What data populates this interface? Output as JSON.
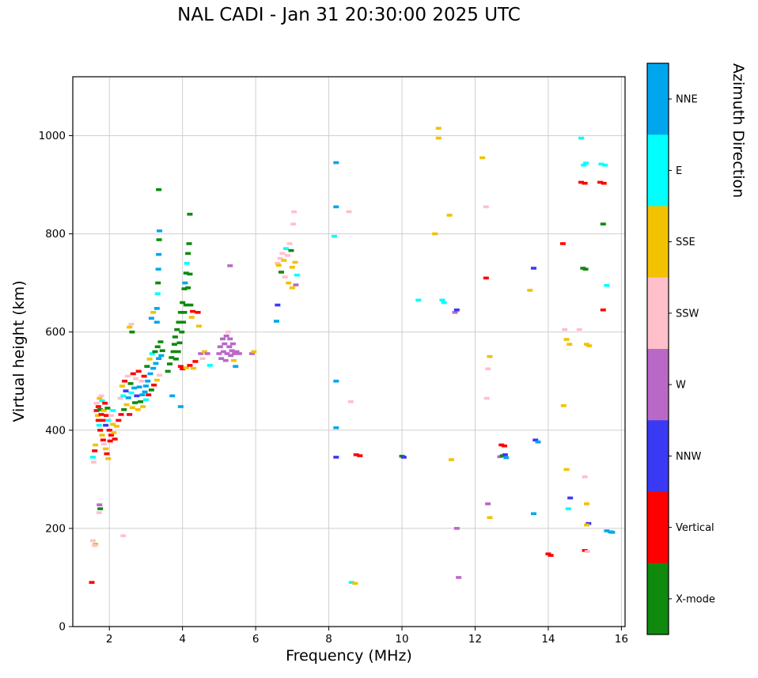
{
  "title": "NAL CADI - Jan 31 20:30:00 2025 UTC",
  "chart_data": {
    "type": "scatter",
    "title": "NAL CADI - Jan 31 20:30:00 2025 UTC",
    "xlabel": "Frequency (MHz)",
    "ylabel": "Virtual height (km)",
    "xlim": [
      1.0,
      16.1
    ],
    "ylim": [
      0,
      1120
    ],
    "xticks": [
      2,
      4,
      6,
      8,
      10,
      12,
      14,
      16
    ],
    "yticks": [
      0,
      200,
      400,
      600,
      800,
      1000
    ],
    "grid": true,
    "grid_color": "#cfcfcf",
    "marker": "horizontal-dash",
    "colorbar": {
      "label": "Azimuth Direction",
      "categories": [
        {
          "key": "NNE",
          "label": "NNE",
          "color": "#00a6ed"
        },
        {
          "key": "E",
          "label": "E",
          "color": "#00ffff"
        },
        {
          "key": "SSE",
          "label": "SSE",
          "color": "#f2c200"
        },
        {
          "key": "SSW",
          "label": "SSW",
          "color": "#ffc0cb"
        },
        {
          "key": "W",
          "label": "W",
          "color": "#ba68c8"
        },
        {
          "key": "NNW",
          "label": "NNW",
          "color": "#3a3af5"
        },
        {
          "key": "V",
          "label": "Vertical",
          "color": "#ff0000"
        },
        {
          "key": "X",
          "label": "X-mode",
          "color": "#0f8a0f"
        }
      ]
    },
    "points": [
      [
        1.52,
        90,
        "V"
      ],
      [
        1.55,
        175,
        "SSW"
      ],
      [
        1.62,
        168,
        "SSE"
      ],
      [
        1.6,
        165,
        "SSW"
      ],
      [
        2.38,
        185,
        "SSW"
      ],
      [
        1.73,
        248,
        "W"
      ],
      [
        1.75,
        240,
        "X"
      ],
      [
        1.72,
        232,
        "SSW"
      ],
      [
        1.55,
        345,
        "E"
      ],
      [
        1.57,
        335,
        "SSW"
      ],
      [
        1.6,
        358,
        "V"
      ],
      [
        1.62,
        370,
        "SSE"
      ],
      [
        1.65,
        455,
        "SSW"
      ],
      [
        1.65,
        440,
        "V"
      ],
      [
        1.68,
        430,
        "SSE"
      ],
      [
        1.7,
        420,
        "V"
      ],
      [
        1.7,
        448,
        "V"
      ],
      [
        1.72,
        410,
        "E"
      ],
      [
        1.73,
        465,
        "SSE"
      ],
      [
        1.75,
        442,
        "X"
      ],
      [
        1.75,
        400,
        "V"
      ],
      [
        1.78,
        470,
        "SSW"
      ],
      [
        1.78,
        432,
        "V"
      ],
      [
        1.8,
        390,
        "SSE"
      ],
      [
        1.8,
        460,
        "E"
      ],
      [
        1.82,
        420,
        "V"
      ],
      [
        1.83,
        380,
        "V"
      ],
      [
        1.85,
        440,
        "SSE"
      ],
      [
        1.85,
        372,
        "SSW"
      ],
      [
        1.88,
        455,
        "V"
      ],
      [
        1.9,
        410,
        "NNW"
      ],
      [
        1.9,
        362,
        "SSE"
      ],
      [
        1.92,
        430,
        "V"
      ],
      [
        1.93,
        352,
        "V"
      ],
      [
        1.95,
        445,
        "X"
      ],
      [
        1.97,
        420,
        "E"
      ],
      [
        1.97,
        342,
        "SSE"
      ],
      [
        2.0,
        400,
        "V"
      ],
      [
        2.02,
        378,
        "V"
      ],
      [
        2.05,
        430,
        "SSW"
      ],
      [
        2.05,
        390,
        "V"
      ],
      [
        2.1,
        440,
        "E"
      ],
      [
        2.1,
        412,
        "SSE"
      ],
      [
        2.12,
        395,
        "SSE"
      ],
      [
        2.15,
        382,
        "V"
      ],
      [
        2.2,
        408,
        "SSE"
      ],
      [
        2.25,
        420,
        "V"
      ],
      [
        2.3,
        465,
        "SSW"
      ],
      [
        2.32,
        432,
        "V"
      ],
      [
        2.35,
        490,
        "SSE"
      ],
      [
        2.38,
        470,
        "E"
      ],
      [
        2.4,
        442,
        "X"
      ],
      [
        2.42,
        500,
        "V"
      ],
      [
        2.45,
        480,
        "NNW"
      ],
      [
        2.47,
        452,
        "SSE"
      ],
      [
        2.5,
        510,
        "SSW"
      ],
      [
        2.52,
        466,
        "NNE"
      ],
      [
        2.55,
        432,
        "V"
      ],
      [
        2.55,
        610,
        "SSE"
      ],
      [
        2.6,
        616,
        "SSW"
      ],
      [
        2.62,
        600,
        "X"
      ],
      [
        2.58,
        495,
        "X"
      ],
      [
        2.6,
        476,
        "E"
      ],
      [
        2.63,
        446,
        "SSE"
      ],
      [
        2.65,
        515,
        "V"
      ],
      [
        2.68,
        486,
        "NNE"
      ],
      [
        2.7,
        456,
        "X"
      ],
      [
        2.72,
        505,
        "SSW"
      ],
      [
        2.75,
        470,
        "NNW"
      ],
      [
        2.78,
        442,
        "SSE"
      ],
      [
        2.8,
        520,
        "V"
      ],
      [
        2.82,
        488,
        "NNE"
      ],
      [
        2.85,
        458,
        "X"
      ],
      [
        2.88,
        500,
        "SSW"
      ],
      [
        2.9,
        472,
        "NNE"
      ],
      [
        2.92,
        448,
        "SSE"
      ],
      [
        2.95,
        510,
        "V"
      ],
      [
        2.97,
        478,
        "NNE"
      ],
      [
        3.0,
        490,
        "NNE"
      ],
      [
        3.0,
        462,
        "E"
      ],
      [
        3.03,
        530,
        "X"
      ],
      [
        3.05,
        500,
        "NNE"
      ],
      [
        3.07,
        472,
        "V"
      ],
      [
        3.1,
        545,
        "SSE"
      ],
      [
        3.12,
        515,
        "NNE"
      ],
      [
        3.15,
        482,
        "X"
      ],
      [
        3.17,
        556,
        "E"
      ],
      [
        3.2,
        526,
        "NNE"
      ],
      [
        3.22,
        492,
        "V"
      ],
      [
        3.25,
        560,
        "X"
      ],
      [
        3.27,
        536,
        "NNE"
      ],
      [
        3.3,
        502,
        "SSE"
      ],
      [
        3.32,
        570,
        "X"
      ],
      [
        3.35,
        546,
        "NNE"
      ],
      [
        3.37,
        512,
        "SSW"
      ],
      [
        3.4,
        580,
        "X"
      ],
      [
        3.42,
        552,
        "NNE"
      ],
      [
        3.45,
        562,
        "X"
      ],
      [
        3.3,
        620,
        "NNE"
      ],
      [
        3.3,
        648,
        "NNE"
      ],
      [
        3.32,
        678,
        "E"
      ],
      [
        3.33,
        700,
        "X"
      ],
      [
        3.34,
        728,
        "NNE"
      ],
      [
        3.35,
        758,
        "NNE"
      ],
      [
        3.36,
        788,
        "X"
      ],
      [
        3.37,
        806,
        "NNE"
      ],
      [
        3.35,
        890,
        "X"
      ],
      [
        3.2,
        640,
        "SSE"
      ],
      [
        3.15,
        628,
        "NNE"
      ],
      [
        3.6,
        520,
        "X"
      ],
      [
        3.65,
        535,
        "X"
      ],
      [
        3.7,
        548,
        "X"
      ],
      [
        3.72,
        470,
        "NNE"
      ],
      [
        3.75,
        560,
        "X"
      ],
      [
        3.78,
        575,
        "X"
      ],
      [
        3.8,
        590,
        "X"
      ],
      [
        3.82,
        545,
        "X"
      ],
      [
        3.85,
        605,
        "X"
      ],
      [
        3.88,
        560,
        "X"
      ],
      [
        3.9,
        620,
        "X"
      ],
      [
        3.92,
        578,
        "X"
      ],
      [
        3.95,
        640,
        "X"
      ],
      [
        3.95,
        530,
        "V"
      ],
      [
        3.98,
        600,
        "X"
      ],
      [
        4.0,
        660,
        "X"
      ],
      [
        4.0,
        525,
        "V"
      ],
      [
        4.02,
        620,
        "X"
      ],
      [
        4.05,
        688,
        "X"
      ],
      [
        4.05,
        640,
        "X"
      ],
      [
        4.07,
        700,
        "NNE"
      ],
      [
        4.1,
        720,
        "X"
      ],
      [
        4.1,
        655,
        "X"
      ],
      [
        4.1,
        527,
        "SSE"
      ],
      [
        4.12,
        740,
        "E"
      ],
      [
        4.15,
        760,
        "X"
      ],
      [
        4.15,
        690,
        "X"
      ],
      [
        4.18,
        780,
        "X"
      ],
      [
        4.2,
        840,
        "X"
      ],
      [
        4.2,
        718,
        "X"
      ],
      [
        4.2,
        532,
        "V"
      ],
      [
        4.22,
        655,
        "X"
      ],
      [
        4.25,
        630,
        "SSE"
      ],
      [
        4.28,
        642,
        "V"
      ],
      [
        4.3,
        526,
        "SSE"
      ],
      [
        4.35,
        540,
        "V"
      ],
      [
        3.95,
        448,
        "NNE"
      ],
      [
        4.42,
        640,
        "V"
      ],
      [
        4.45,
        612,
        "SSE"
      ],
      [
        4.5,
        556,
        "W"
      ],
      [
        4.55,
        546,
        "SSW"
      ],
      [
        4.6,
        560,
        "SSE"
      ],
      [
        4.68,
        556,
        "W"
      ],
      [
        4.75,
        532,
        "E"
      ],
      [
        5.0,
        556,
        "W"
      ],
      [
        5.03,
        570,
        "W"
      ],
      [
        5.06,
        546,
        "W"
      ],
      [
        5.1,
        586,
        "W"
      ],
      [
        5.12,
        560,
        "W"
      ],
      [
        5.15,
        576,
        "W"
      ],
      [
        5.18,
        542,
        "W"
      ],
      [
        5.2,
        592,
        "W"
      ],
      [
        5.22,
        556,
        "W"
      ],
      [
        5.25,
        600,
        "SSW"
      ],
      [
        5.28,
        570,
        "W"
      ],
      [
        5.3,
        586,
        "W"
      ],
      [
        5.32,
        552,
        "W"
      ],
      [
        5.35,
        562,
        "W"
      ],
      [
        5.38,
        576,
        "W"
      ],
      [
        5.4,
        542,
        "SSE"
      ],
      [
        5.42,
        556,
        "W"
      ],
      [
        5.45,
        530,
        "NNE"
      ],
      [
        5.48,
        560,
        "W"
      ],
      [
        5.3,
        735,
        "W"
      ],
      [
        5.55,
        556,
        "W"
      ],
      [
        5.9,
        556,
        "W"
      ],
      [
        5.95,
        560,
        "SSE"
      ],
      [
        6.57,
        622,
        "NNE"
      ],
      [
        6.6,
        655,
        "NNW"
      ],
      [
        6.6,
        740,
        "SSW"
      ],
      [
        6.63,
        736,
        "SSE"
      ],
      [
        6.67,
        750,
        "SSW"
      ],
      [
        6.7,
        722,
        "X"
      ],
      [
        6.73,
        760,
        "SSW"
      ],
      [
        6.77,
        746,
        "SSE"
      ],
      [
        6.8,
        712,
        "SSW"
      ],
      [
        6.83,
        770,
        "E"
      ],
      [
        6.87,
        756,
        "SSW"
      ],
      [
        6.9,
        700,
        "SSE"
      ],
      [
        6.93,
        780,
        "SSW"
      ],
      [
        6.97,
        766,
        "X"
      ],
      [
        7.0,
        732,
        "SSE"
      ],
      [
        7.03,
        820,
        "SSW"
      ],
      [
        7.05,
        845,
        "SSW"
      ],
      [
        7.08,
        742,
        "SSE"
      ],
      [
        7.1,
        696,
        "W"
      ],
      [
        7.13,
        716,
        "E"
      ],
      [
        7.0,
        690,
        "SSE"
      ],
      [
        8.2,
        945,
        "NNE"
      ],
      [
        8.2,
        855,
        "NNE"
      ],
      [
        8.15,
        795,
        "E"
      ],
      [
        8.2,
        500,
        "NNE"
      ],
      [
        8.2,
        405,
        "NNE"
      ],
      [
        8.2,
        345,
        "NNW"
      ],
      [
        8.55,
        845,
        "SSW"
      ],
      [
        8.6,
        458,
        "SSW"
      ],
      [
        8.75,
        350,
        "V"
      ],
      [
        8.85,
        348,
        "V"
      ],
      [
        8.62,
        90,
        "E"
      ],
      [
        8.72,
        88,
        "SSE"
      ],
      [
        10.0,
        347,
        "X"
      ],
      [
        10.05,
        345,
        "NNW"
      ],
      [
        10.45,
        665,
        "E"
      ],
      [
        10.9,
        800,
        "SSE"
      ],
      [
        11.0,
        1015,
        "SSE"
      ],
      [
        11.0,
        995,
        "SSE"
      ],
      [
        11.1,
        665,
        "E"
      ],
      [
        11.15,
        660,
        "E"
      ],
      [
        11.3,
        838,
        "SSE"
      ],
      [
        11.45,
        640,
        "W"
      ],
      [
        11.5,
        645,
        "NNW"
      ],
      [
        11.5,
        200,
        "W"
      ],
      [
        11.55,
        100,
        "W"
      ],
      [
        11.35,
        340,
        "SSE"
      ],
      [
        12.2,
        955,
        "SSE"
      ],
      [
        12.3,
        855,
        "SSW"
      ],
      [
        12.3,
        710,
        "V"
      ],
      [
        12.35,
        525,
        "SSW"
      ],
      [
        12.4,
        550,
        "SSE"
      ],
      [
        12.32,
        465,
        "SSW"
      ],
      [
        12.35,
        250,
        "W"
      ],
      [
        12.4,
        222,
        "SSE"
      ],
      [
        12.72,
        370,
        "V"
      ],
      [
        12.8,
        368,
        "V"
      ],
      [
        12.68,
        346,
        "W"
      ],
      [
        12.75,
        348,
        "X"
      ],
      [
        12.85,
        344,
        "NNE"
      ],
      [
        12.82,
        350,
        "NNW"
      ],
      [
        13.6,
        730,
        "NNW"
      ],
      [
        13.5,
        685,
        "SSE"
      ],
      [
        13.65,
        380,
        "NNW"
      ],
      [
        13.72,
        376,
        "NNE"
      ],
      [
        13.6,
        230,
        "NNE"
      ],
      [
        14.0,
        148,
        "V"
      ],
      [
        14.07,
        145,
        "V"
      ],
      [
        14.4,
        780,
        "V"
      ],
      [
        14.45,
        605,
        "SSW"
      ],
      [
        14.5,
        585,
        "SSE"
      ],
      [
        14.58,
        575,
        "SSE"
      ],
      [
        14.42,
        450,
        "SSE"
      ],
      [
        14.5,
        320,
        "SSE"
      ],
      [
        14.55,
        240,
        "E"
      ],
      [
        14.6,
        262,
        "NNW"
      ],
      [
        14.9,
        995,
        "E"
      ],
      [
        14.97,
        940,
        "E"
      ],
      [
        15.03,
        944,
        "E"
      ],
      [
        14.9,
        905,
        "V"
      ],
      [
        15.0,
        903,
        "V"
      ],
      [
        14.95,
        730,
        "X"
      ],
      [
        15.02,
        728,
        "X"
      ],
      [
        15.05,
        575,
        "SSE"
      ],
      [
        15.12,
        572,
        "SSE"
      ],
      [
        14.85,
        605,
        "SSW"
      ],
      [
        15.0,
        305,
        "SSW"
      ],
      [
        15.05,
        250,
        "SSE"
      ],
      [
        15.1,
        210,
        "NNW"
      ],
      [
        15.05,
        207,
        "SSE"
      ],
      [
        15.0,
        155,
        "V"
      ],
      [
        15.07,
        153,
        "SSW"
      ],
      [
        15.45,
        942,
        "E"
      ],
      [
        15.55,
        940,
        "E"
      ],
      [
        15.42,
        905,
        "V"
      ],
      [
        15.52,
        903,
        "V"
      ],
      [
        15.5,
        820,
        "X"
      ],
      [
        15.6,
        695,
        "E"
      ],
      [
        15.5,
        645,
        "V"
      ],
      [
        15.6,
        195,
        "NNE"
      ],
      [
        15.7,
        193,
        "NNE"
      ],
      [
        15.75,
        192,
        "NNE"
      ]
    ]
  }
}
